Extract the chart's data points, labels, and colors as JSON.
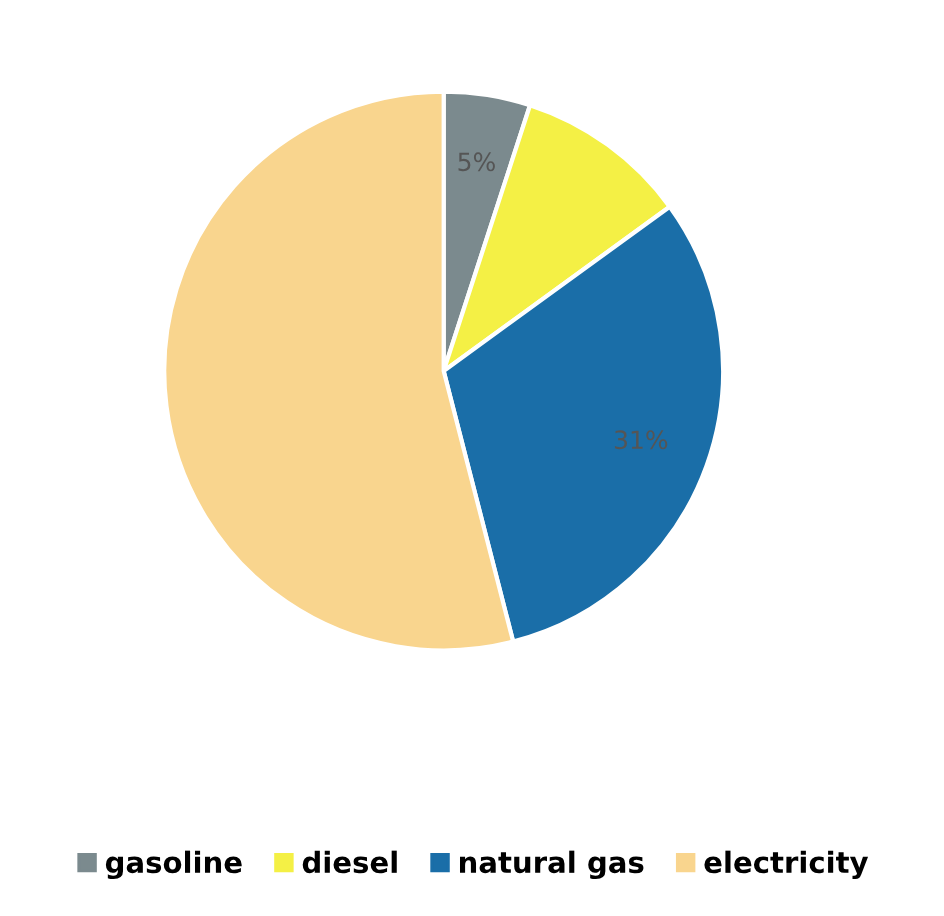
{
  "chart_data": {
    "type": "pie",
    "categories": [
      "gasoline",
      "diesel",
      "natural gas",
      "electricity"
    ],
    "values": [
      5,
      10,
      31,
      54
    ],
    "colors": [
      "#7b8a8e",
      "#f4f045",
      "#1a6ea8",
      "#f9d58e"
    ],
    "value_labels": [
      "5%",
      null,
      "31%",
      null
    ],
    "legend": "bottom"
  }
}
